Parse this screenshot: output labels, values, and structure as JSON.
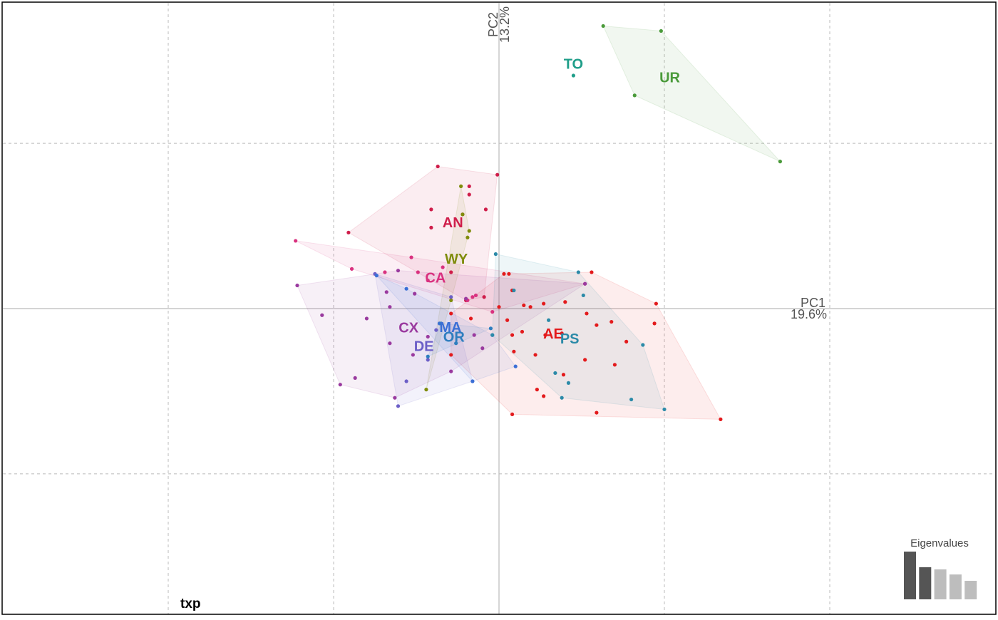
{
  "chart_data": {
    "type": "scatter",
    "title": "txp",
    "x_label": "PC1",
    "x_label_2": "19.6%",
    "y_label": "PC2",
    "y_label_2": "13.2%",
    "xlim": [
      -3,
      3
    ],
    "ylim": [
      -1.85,
      1.85
    ],
    "xgrid": [
      -2,
      -1,
      0,
      1,
      2
    ],
    "ygrid": [
      -1,
      0,
      1
    ],
    "grid": true,
    "series": [
      {
        "name": "AE",
        "color": "#e31a1c",
        "x": [
          1.34,
          0.08,
          0.95,
          0.94,
          0.59,
          0.7,
          0.77,
          0.59,
          0.68,
          0.52,
          0.4,
          0.53,
          0.27,
          0.19,
          0.15,
          0.08,
          0.06,
          0.03,
          0.05,
          0.08,
          0.09,
          0.22,
          0.27,
          0.23,
          0.38,
          0.14,
          0.56,
          -0.29,
          -0.29,
          -0.17,
          0.0,
          0.39,
          0.28
        ],
        "values": [
          -0.67,
          -0.64,
          0.03,
          -0.09,
          -0.63,
          -0.34,
          -0.2,
          -0.1,
          -0.08,
          -0.31,
          0.04,
          -0.03,
          0.03,
          0.01,
          0.02,
          0.11,
          0.21,
          0.21,
          -0.07,
          -0.16,
          -0.26,
          -0.28,
          -0.53,
          -0.49,
          -0.15,
          -0.14,
          0.22,
          -0.03,
          -0.28,
          -0.06,
          0.01,
          -0.4,
          -0.16
        ]
      },
      {
        "name": "AN",
        "color": "#cf1d4a",
        "x": [
          -0.37,
          -0.01,
          -0.91,
          -0.18,
          -0.41,
          -0.08,
          -0.18,
          -0.41,
          -0.22,
          -0.09,
          -0.29,
          -0.2
        ],
        "values": [
          0.86,
          0.81,
          0.46,
          0.74,
          0.6,
          0.6,
          0.69,
          0.49,
          0.57,
          0.07,
          0.22,
          0.05
        ]
      },
      {
        "name": "CA",
        "color": "#d9317f",
        "x": [
          -1.23,
          0.52,
          -0.89,
          -0.69,
          -0.53,
          -0.43,
          -0.49,
          -0.19,
          -0.04,
          -0.34,
          -0.16,
          -0.14
        ],
        "values": [
          0.41,
          0.15,
          0.24,
          0.22,
          0.31,
          0.17,
          0.22,
          0.05,
          -0.02,
          0.25,
          0.07,
          0.08
        ]
      },
      {
        "name": "WY",
        "color": "#7f8c0a",
        "x": [
          -0.23,
          -0.18,
          -0.19,
          -0.44,
          -0.22,
          -0.29
        ],
        "values": [
          0.74,
          0.47,
          0.43,
          -0.49,
          0.57,
          0.05
        ]
      },
      {
        "name": "CX",
        "color": "#9a3a9f",
        "x": [
          -1.22,
          -1.07,
          -0.96,
          -0.63,
          -0.87,
          -0.66,
          -0.52,
          -0.8,
          -0.66,
          -0.68,
          -0.61,
          -0.51,
          -0.29,
          -0.15,
          -0.2,
          -0.1,
          -0.43,
          0.52
        ],
        "values": [
          0.14,
          -0.04,
          -0.46,
          -0.54,
          -0.42,
          -0.21,
          -0.28,
          -0.06,
          0.01,
          0.1,
          0.23,
          0.09,
          -0.38,
          -0.16,
          0.06,
          -0.24,
          -0.17,
          0.15
        ]
      },
      {
        "name": "DE",
        "color": "#6c5fc7",
        "x": [
          -0.61,
          -0.75,
          -0.16,
          -0.29,
          -0.56,
          -0.43,
          -0.38
        ],
        "values": [
          -0.59,
          0.21,
          -0.44,
          0.07,
          -0.44,
          -0.31,
          -0.13
        ]
      },
      {
        "name": "MA",
        "color": "#3a6fd6",
        "x": [
          -0.74,
          0.1,
          -0.36,
          -0.16,
          -0.56,
          -0.04
        ],
        "values": [
          0.2,
          -0.35,
          -0.09,
          -0.44,
          0.12,
          -0.16
        ]
      },
      {
        "name": "OR",
        "color": "#2e7ebf",
        "x": [
          -0.35,
          -0.05,
          -0.26,
          -0.43
        ],
        "values": [
          -0.09,
          -0.12,
          -0.21,
          -0.29
        ]
      },
      {
        "name": "PS",
        "color": "#2b8aa8",
        "x": [
          -0.02,
          0.48,
          1.0,
          0.8,
          0.87,
          0.38,
          0.3,
          0.34,
          0.42,
          -0.04,
          0.09,
          0.51
        ],
        "values": [
          0.33,
          0.22,
          -0.61,
          -0.55,
          -0.22,
          -0.54,
          -0.07,
          -0.39,
          -0.45,
          -0.16,
          0.11,
          0.08
        ]
      },
      {
        "name": "TO",
        "color": "#1f9e89",
        "x": [
          0.45
        ],
        "values": [
          1.41
        ]
      },
      {
        "name": "UR",
        "color": "#4a9a3a",
        "x": [
          0.63,
          0.98,
          0.82,
          1.7
        ],
        "values": [
          1.71,
          1.68,
          1.29,
          0.89
        ]
      }
    ],
    "inset": {
      "title": "Eigenvalues",
      "values": [
        19.6,
        13.2,
        12.3,
        10.2,
        7.6
      ],
      "colors": [
        "#555555",
        "#555555",
        "#bdbdbd",
        "#bdbdbd",
        "#bdbdbd"
      ]
    }
  }
}
